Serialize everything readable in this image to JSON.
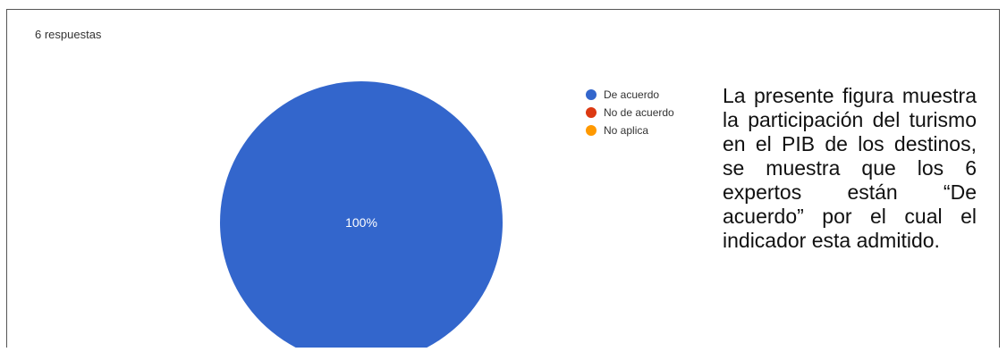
{
  "header": {
    "responses_label": "6 respuestas"
  },
  "chart_data": {
    "type": "pie",
    "categories": [
      "De acuerdo",
      "No de acuerdo",
      "No aplica"
    ],
    "values": [
      100,
      0,
      0
    ],
    "unit": "%",
    "colors": [
      "#3366cc",
      "#dc3912",
      "#ff9900"
    ],
    "data_labels": [
      "100%"
    ],
    "legend_position": "right"
  },
  "note": {
    "text": "La presente figura muestra la participación del turismo en el PIB de los destinos, se muestra que los 6 expertos están “De acuerdo” por el cual el indicador esta admitido."
  }
}
